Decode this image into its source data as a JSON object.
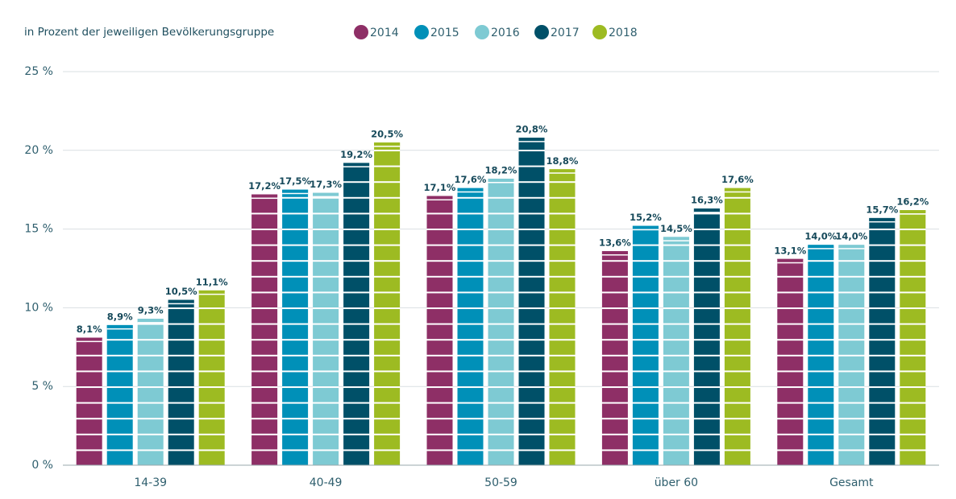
{
  "chart_data": {
    "type": "bar",
    "subtitle": "in Prozent der jeweiligen Bevölkerungsgruppe",
    "categories": [
      "14-39",
      "40-49",
      "50-59",
      "über 60",
      "Gesamt"
    ],
    "series": [
      {
        "name": "2014",
        "color": "#8e2f66",
        "values": [
          8.1,
          17.2,
          17.1,
          13.6,
          13.1
        ],
        "value_labels": [
          "8,1%",
          "17,2%",
          "17,1%",
          "13,6%",
          "13,1%"
        ]
      },
      {
        "name": "2015",
        "color": "#0090b8",
        "values": [
          8.9,
          17.5,
          17.6,
          15.2,
          14.0
        ],
        "value_labels": [
          "8,9%",
          "17,5%",
          "17,6%",
          "15,2%",
          "14,0%"
        ]
      },
      {
        "name": "2016",
        "color": "#7ecad3",
        "values": [
          9.3,
          17.3,
          18.2,
          14.5,
          14.0
        ],
        "value_labels": [
          "9,3%",
          "17,3%",
          "18,2%",
          "14,5%",
          "14,0%"
        ]
      },
      {
        "name": "2017",
        "color": "#005068",
        "values": [
          10.5,
          19.2,
          20.8,
          16.3,
          15.7
        ],
        "value_labels": [
          "10,5%",
          "19,2%",
          "20,8%",
          "16,3%",
          "15,7%"
        ]
      },
      {
        "name": "2018",
        "color": "#9dbb22",
        "values": [
          11.1,
          20.5,
          18.8,
          17.6,
          16.2
        ],
        "value_labels": [
          "11,1%",
          "20,5%",
          "18,8%",
          "17,6%",
          "16,2%"
        ]
      }
    ],
    "ylim": [
      0,
      25
    ],
    "yticks": [
      {
        "value": 0,
        "label": "0 %"
      },
      {
        "value": 5,
        "label": "5 %"
      },
      {
        "value": 10,
        "label": "10 %"
      },
      {
        "value": 15,
        "label": "15 %"
      },
      {
        "value": 20,
        "label": "20 %"
      },
      {
        "value": 25,
        "label": "25 %"
      }
    ],
    "grid": true
  }
}
